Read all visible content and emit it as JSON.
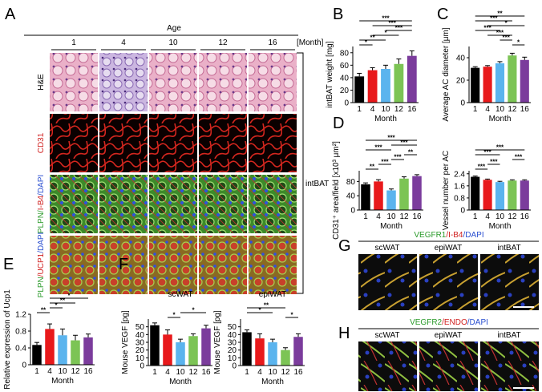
{
  "panel_a": {
    "letter": "A",
    "header": "Age",
    "columns": [
      "1",
      "4",
      "10",
      "12",
      "16"
    ],
    "unit": "[Month]",
    "rows": [
      {
        "parts": [
          "H&E"
        ],
        "colors": [
          "#000000"
        ]
      },
      {
        "parts": [
          "CD31"
        ],
        "colors": [
          "#d0201f"
        ]
      },
      {
        "parts": [
          "PLPN/",
          "I-B4",
          "/DAPI"
        ],
        "colors": [
          "#2a9a2a",
          "#d0201f",
          "#2a4fd0"
        ]
      },
      {
        "parts": [
          "PLPN",
          "/UCP1",
          "/DAPI"
        ],
        "colors": [
          "#2a9a2a",
          "#d0201f",
          "#2a4fd0"
        ]
      }
    ],
    "bracket": "intBAT"
  },
  "panel_g": {
    "letter": "G",
    "parts": [
      "VEGFR1",
      "/I-B4",
      "/DAPI"
    ],
    "colors": [
      "#2a9a2a",
      "#d0201f",
      "#2a4fd0"
    ],
    "columns": [
      "scWAT",
      "epiWAT",
      "intBAT"
    ]
  },
  "panel_h": {
    "letter": "H",
    "parts": [
      "VEGFR2",
      "/ENDO",
      "/DAPI"
    ],
    "colors": [
      "#2a9a2a",
      "#d0201f",
      "#2a4fd0"
    ],
    "columns": [
      "scWAT",
      "epiWAT",
      "intBAT"
    ]
  },
  "chart_data": [
    {
      "type": "bar",
      "panel": "B",
      "ylabel": "intBAT weight [mg]",
      "xlabel": "Month",
      "categories": [
        "1",
        "4",
        "10",
        "12",
        "16"
      ],
      "values": [
        42,
        52,
        54,
        62,
        75
      ],
      "errors": [
        5,
        4,
        6,
        8,
        8
      ],
      "colors": [
        "#000000",
        "#e8191b",
        "#5bb4ee",
        "#7cc455",
        "#7b3c9c"
      ],
      "ylim": [
        0,
        90
      ],
      "yticks": [
        0,
        20,
        40,
        60,
        80
      ],
      "significance": [
        {
          "between": [
            "1",
            "4"
          ],
          "label": "*"
        },
        {
          "between": [
            "1",
            "10"
          ],
          "label": "**"
        },
        {
          "between": [
            "4",
            "12"
          ],
          "label": "*"
        },
        {
          "between": [
            "10",
            "16"
          ],
          "label": "***"
        },
        {
          "between": [
            "4",
            "16"
          ],
          "label": "***"
        },
        {
          "between": [
            "1",
            "16"
          ],
          "label": "***"
        }
      ]
    },
    {
      "type": "bar",
      "panel": "C",
      "ylabel": "Average AC diameter [μm]",
      "xlabel": "Month",
      "categories": [
        "1",
        "4",
        "10",
        "12",
        "16"
      ],
      "values": [
        31,
        32,
        35,
        42,
        38
      ],
      "errors": [
        1,
        1,
        1.5,
        2,
        2.5
      ],
      "colors": [
        "#000000",
        "#e8191b",
        "#5bb4ee",
        "#7cc455",
        "#7b3c9c"
      ],
      "ylim": [
        0,
        50
      ],
      "yticks": [
        0,
        20,
        40
      ],
      "significance": [
        {
          "between": [
            "12",
            "16"
          ],
          "label": "*"
        },
        {
          "between": [
            "10",
            "12"
          ],
          "label": "***"
        },
        {
          "between": [
            "4",
            "12"
          ],
          "label": "***"
        },
        {
          "between": [
            "1",
            "10"
          ],
          "label": "***"
        },
        {
          "between": [
            "4",
            "16"
          ],
          "label": "*"
        },
        {
          "between": [
            "1",
            "12"
          ],
          "label": "***"
        },
        {
          "between": [
            "1",
            "16"
          ],
          "label": "**"
        }
      ]
    },
    {
      "type": "bar",
      "panel": "D",
      "ylabel": "CD31⁺ area/field [x10³ μm²]",
      "xlabel": "Month",
      "categories": [
        "1",
        "4",
        "10",
        "12",
        "16"
      ],
      "values": [
        72,
        80,
        55,
        88,
        95
      ],
      "errors": [
        4,
        5,
        4,
        5,
        4
      ],
      "colors": [
        "#000000",
        "#e8191b",
        "#5bb4ee",
        "#7cc455",
        "#7b3c9c"
      ],
      "ylim": [
        0,
        110
      ],
      "yticks": [
        0,
        40,
        80
      ],
      "significance": [
        {
          "between": [
            "1",
            "4"
          ],
          "label": "**"
        },
        {
          "between": [
            "4",
            "10"
          ],
          "label": "***"
        },
        {
          "between": [
            "10",
            "12"
          ],
          "label": "***"
        },
        {
          "between": [
            "12",
            "16"
          ],
          "label": "**"
        },
        {
          "between": [
            "1",
            "10"
          ],
          "label": "***"
        },
        {
          "between": [
            "10",
            "16"
          ],
          "label": "***"
        },
        {
          "between": [
            "1",
            "16"
          ],
          "label": "***"
        }
      ]
    },
    {
      "type": "bar",
      "ylabel": "Vessel number per AC",
      "xlabel": "Month",
      "categories": [
        "1",
        "4",
        "10",
        "12",
        "16"
      ],
      "values": [
        2.2,
        2.0,
        1.85,
        1.95,
        1.95
      ],
      "errors": [
        0.05,
        0.05,
        0.05,
        0.05,
        0.05
      ],
      "colors": [
        "#000000",
        "#e8191b",
        "#5bb4ee",
        "#7cc455",
        "#7b3c9c"
      ],
      "ylim": [
        0,
        2.6
      ],
      "yticks": [
        0,
        0.8,
        1.6,
        2.4
      ],
      "significance": [
        {
          "between": [
            "1",
            "4"
          ],
          "label": "***"
        },
        {
          "between": [
            "4",
            "10"
          ],
          "label": "***"
        },
        {
          "between": [
            "12",
            "16"
          ],
          "label": "***"
        },
        {
          "between": [
            "1",
            "10"
          ],
          "label": "***"
        },
        {
          "between": [
            "1",
            "16"
          ],
          "label": "***"
        }
      ]
    },
    {
      "type": "bar",
      "panel": "E",
      "ylabel": "Relative expression of Ucp1",
      "xlabel": "Month",
      "categories": [
        "1",
        "4",
        "10",
        "12",
        "16"
      ],
      "values": [
        0.47,
        0.85,
        0.7,
        0.58,
        0.65
      ],
      "errors": [
        0.06,
        0.12,
        0.15,
        0.12,
        0.08
      ],
      "colors": [
        "#000000",
        "#e8191b",
        "#5bb4ee",
        "#7cc455",
        "#7b3c9c"
      ],
      "ylim": [
        0,
        1.2
      ],
      "yticks": [
        0,
        0.4,
        0.8,
        1.2
      ],
      "significance": [
        {
          "between": [
            "1",
            "4"
          ],
          "label": "**"
        },
        {
          "between": [
            "4",
            "10"
          ],
          "label": "*"
        },
        {
          "between": [
            "4",
            "12"
          ],
          "label": "**"
        },
        {
          "between": [
            "4",
            "16"
          ],
          "label": "*"
        }
      ]
    },
    {
      "type": "bar",
      "panel": "F",
      "title": "scWAT",
      "ylabel": "Mouse VEGF [pg]",
      "xlabel": "Month",
      "categories": [
        "1",
        "4",
        "10",
        "12",
        "16"
      ],
      "values": [
        52,
        40,
        30,
        38,
        48
      ],
      "errors": [
        3,
        6,
        4,
        3,
        4
      ],
      "colors": [
        "#000000",
        "#e8191b",
        "#5bb4ee",
        "#7cc455",
        "#7b3c9c"
      ],
      "ylim": [
        0,
        60
      ],
      "yticks": [
        0,
        10,
        20,
        30,
        40,
        50
      ],
      "significance": [
        {
          "between": [
            "4",
            "10"
          ],
          "label": "*"
        },
        {
          "between": [
            "10",
            "16"
          ],
          "label": "*"
        }
      ]
    },
    {
      "type": "bar",
      "title": "epiWAT",
      "ylabel": "Mouse VEGF [pg]",
      "xlabel": "Month",
      "categories": [
        "1",
        "4",
        "10",
        "12",
        "16"
      ],
      "values": [
        43,
        35,
        30,
        20,
        37
      ],
      "errors": [
        3,
        6,
        4,
        3,
        4
      ],
      "colors": [
        "#000000",
        "#e8191b",
        "#5bb4ee",
        "#7cc455",
        "#7b3c9c"
      ],
      "ylim": [
        0,
        60
      ],
      "yticks": [
        0,
        10,
        20,
        30,
        40,
        50
      ],
      "significance": [
        {
          "between": [
            "12",
            "16"
          ],
          "label": "*"
        },
        {
          "between": [
            "1",
            "10"
          ],
          "label": "*"
        },
        {
          "between": [
            "1",
            "12"
          ],
          "label": "**"
        }
      ]
    }
  ]
}
